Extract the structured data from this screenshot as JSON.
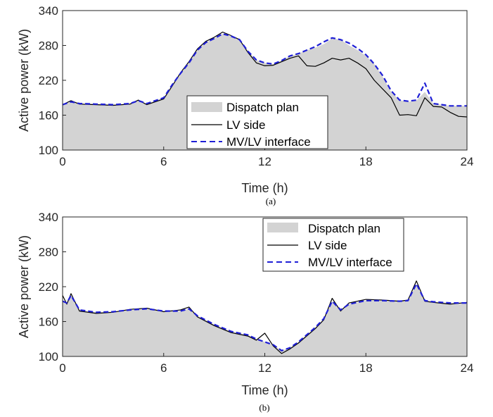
{
  "figure": {
    "panels": [
      {
        "caption": "(a)"
      },
      {
        "caption": "(b)"
      }
    ]
  },
  "colors": {
    "dispatch_fill": "#d3d3d3",
    "lv_side": "#000000",
    "mv_lv": "#1f1fd6"
  },
  "chart_data": [
    {
      "type": "line",
      "panel": "(a)",
      "xlabel": "Time (h)",
      "ylabel": "Active power (kW)",
      "xlim": [
        0,
        24
      ],
      "ylim": [
        100,
        340
      ],
      "xticks": [
        0,
        6,
        12,
        18,
        24
      ],
      "yticks": [
        100,
        160,
        220,
        280,
        340
      ],
      "legend": {
        "position": "bottom-center",
        "entries": [
          "Dispatch plan",
          "LV side",
          "MV/LV interface"
        ]
      },
      "series": [
        {
          "name": "Dispatch plan",
          "style": "area",
          "x": [
            0,
            0.5,
            1,
            2,
            3,
            4,
            4.5,
            5,
            6,
            6.5,
            7,
            7.5,
            8,
            8.5,
            9,
            9.5,
            10,
            10.5,
            11,
            11.5,
            12,
            12.5,
            13,
            13.5,
            14,
            14.5,
            15,
            15.5,
            16,
            16.5,
            17,
            17.5,
            18,
            18.5,
            19,
            19.5,
            20,
            20.5,
            21,
            21.5,
            22,
            22.5,
            23,
            23.5,
            24
          ],
          "values": [
            178,
            183,
            180,
            179,
            178,
            180,
            185,
            180,
            190,
            212,
            232,
            250,
            272,
            285,
            292,
            300,
            296,
            290,
            270,
            255,
            250,
            248,
            254,
            262,
            266,
            272,
            276,
            282,
            292,
            290,
            280,
            272,
            262,
            248,
            226,
            200,
            186,
            183,
            185,
            200,
            180,
            178,
            176,
            176,
            176
          ]
        },
        {
          "name": "LV side",
          "style": "line",
          "x": [
            0,
            0.5,
            1,
            2,
            3,
            4,
            4.5,
            5,
            6,
            6.5,
            7,
            7.5,
            8,
            8.5,
            9,
            9.5,
            10,
            10.5,
            11,
            11.5,
            12,
            12.5,
            13,
            13.5,
            14,
            14.5,
            15,
            15.5,
            16,
            16.5,
            17,
            17.5,
            18,
            18.5,
            19,
            19.5,
            20,
            20.5,
            21,
            21.5,
            22,
            22.5,
            23,
            23.5,
            24
          ],
          "values": [
            178,
            185,
            179,
            178,
            177,
            179,
            186,
            178,
            188,
            210,
            233,
            252,
            274,
            287,
            294,
            303,
            297,
            290,
            268,
            250,
            245,
            246,
            252,
            258,
            262,
            245,
            244,
            250,
            258,
            255,
            258,
            250,
            240,
            220,
            205,
            190,
            160,
            161,
            159,
            190,
            175,
            174,
            165,
            158,
            157
          ]
        },
        {
          "name": "MV/LV interface",
          "style": "dashed",
          "x": [
            0,
            0.5,
            1,
            2,
            3,
            4,
            4.5,
            5,
            6,
            6.5,
            7,
            7.5,
            8,
            8.5,
            9,
            9.5,
            10,
            10.5,
            11,
            11.5,
            12,
            12.5,
            13,
            13.5,
            14,
            14.5,
            15,
            15.5,
            16,
            16.5,
            17,
            17.5,
            18,
            18.5,
            19,
            19.5,
            20,
            20.5,
            21,
            21.5,
            22,
            22.5,
            23,
            23.5,
            24
          ],
          "values": [
            178,
            183,
            180,
            179,
            178,
            180,
            185,
            180,
            190,
            212,
            232,
            250,
            272,
            285,
            292,
            300,
            296,
            290,
            270,
            255,
            250,
            248,
            254,
            262,
            266,
            272,
            278,
            286,
            293,
            290,
            284,
            275,
            264,
            248,
            228,
            202,
            186,
            184,
            186,
            215,
            180,
            178,
            176,
            176,
            176
          ]
        }
      ]
    },
    {
      "type": "line",
      "panel": "(b)",
      "xlabel": "Time (h)",
      "ylabel": "Active power (kW)",
      "xlim": [
        0,
        24
      ],
      "ylim": [
        100,
        340
      ],
      "xticks": [
        0,
        6,
        12,
        18,
        24
      ],
      "yticks": [
        100,
        160,
        220,
        280,
        340
      ],
      "legend": {
        "position": "top-right",
        "entries": [
          "Dispatch plan",
          "LV side",
          "MV/LV interface"
        ]
      },
      "series": [
        {
          "name": "Dispatch plan",
          "style": "area",
          "x": [
            0,
            0.25,
            0.5,
            1,
            2,
            3,
            4,
            5,
            6,
            7,
            7.5,
            8,
            9,
            10,
            11,
            11.5,
            12,
            12.5,
            13,
            13.5,
            14,
            15,
            15.5,
            16,
            16.5,
            17,
            18,
            19,
            20,
            20.5,
            21,
            21.5,
            22,
            23,
            24
          ],
          "values": [
            195,
            192,
            205,
            180,
            176,
            177,
            180,
            182,
            178,
            178,
            182,
            170,
            155,
            143,
            137,
            130,
            125,
            120,
            110,
            115,
            125,
            150,
            165,
            195,
            180,
            190,
            196,
            196,
            195,
            196,
            225,
            196,
            194,
            192,
            192
          ]
        },
        {
          "name": "LV side",
          "style": "line",
          "x": [
            0,
            0.25,
            0.5,
            1,
            2,
            3,
            4,
            5,
            6,
            7,
            7.5,
            8,
            9,
            10,
            11,
            11.5,
            12,
            12.5,
            13,
            13.5,
            14,
            15,
            15.5,
            16,
            16.5,
            17,
            18,
            19,
            20,
            20.5,
            21,
            21.5,
            22,
            23,
            24
          ],
          "values": [
            205,
            190,
            208,
            178,
            174,
            176,
            181,
            183,
            177,
            180,
            185,
            168,
            153,
            141,
            135,
            128,
            140,
            118,
            105,
            113,
            123,
            148,
            163,
            200,
            178,
            192,
            198,
            197,
            195,
            197,
            230,
            195,
            193,
            190,
            193
          ]
        },
        {
          "name": "MV/LV interface",
          "style": "dashed",
          "x": [
            0,
            0.25,
            0.5,
            1,
            2,
            3,
            4,
            5,
            6,
            7,
            7.5,
            8,
            9,
            10,
            11,
            11.5,
            12,
            12.5,
            13,
            13.5,
            14,
            15,
            15.5,
            16,
            16.5,
            17,
            18,
            19,
            20,
            20.5,
            21,
            21.5,
            22,
            23,
            24
          ],
          "values": [
            195,
            192,
            205,
            180,
            176,
            177,
            180,
            182,
            178,
            178,
            182,
            170,
            155,
            143,
            137,
            130,
            125,
            120,
            110,
            115,
            125,
            150,
            165,
            195,
            180,
            190,
            196,
            196,
            195,
            196,
            225,
            196,
            194,
            192,
            192
          ]
        }
      ]
    }
  ]
}
